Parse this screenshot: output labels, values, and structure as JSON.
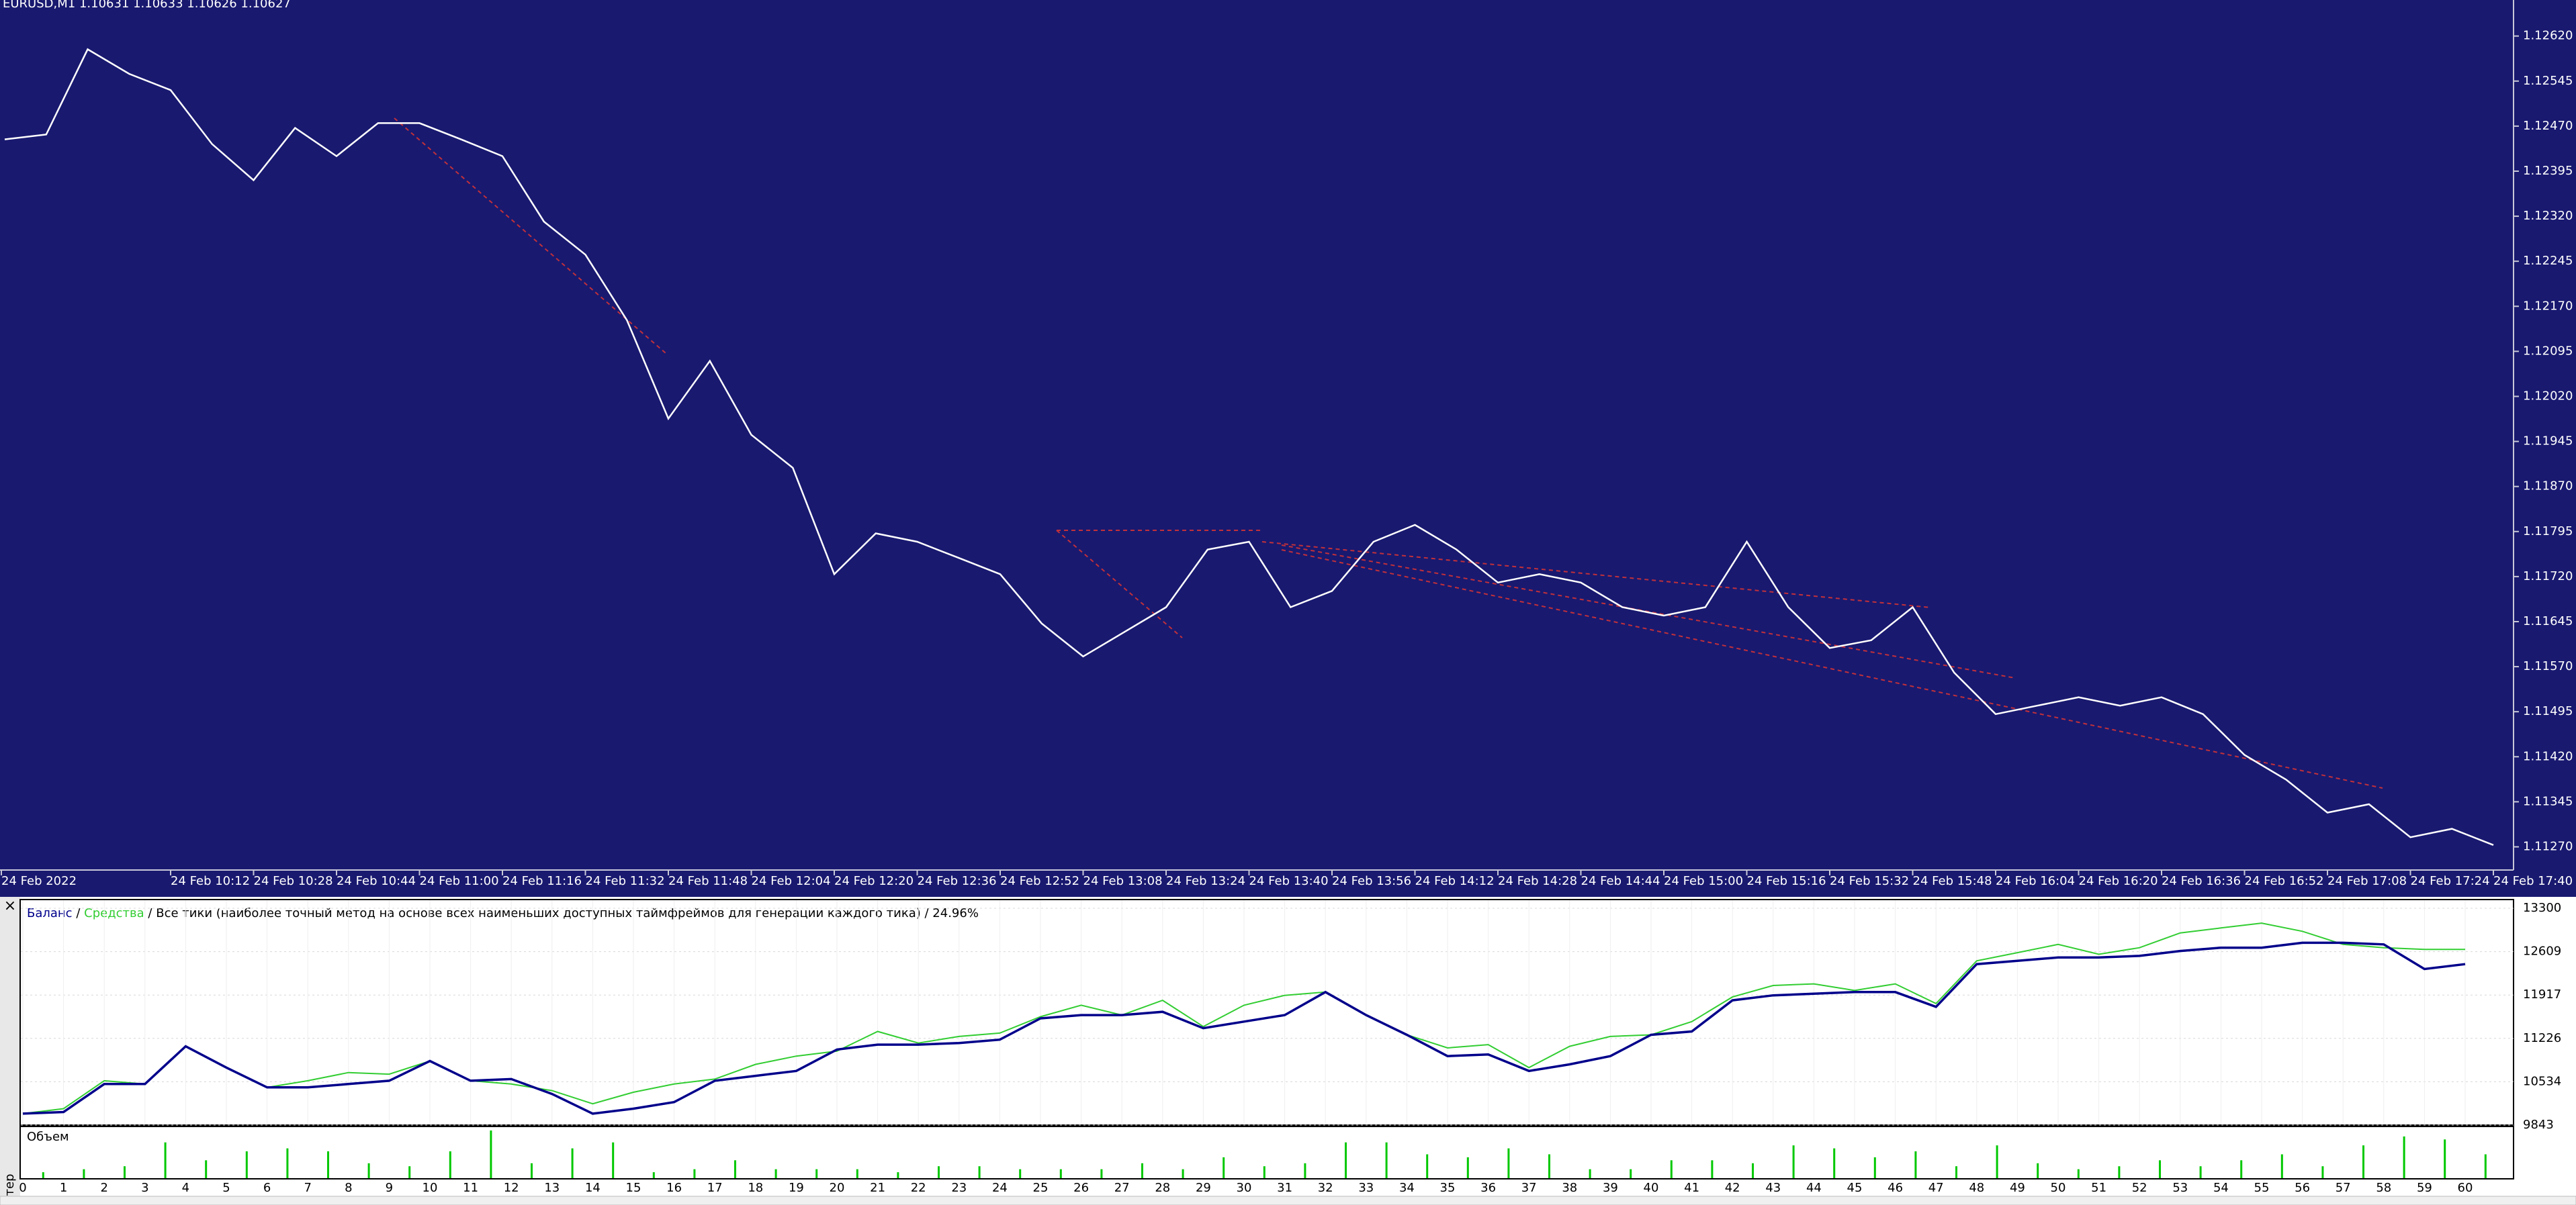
{
  "header": {
    "symbol_line": "EURUSD,M1 1.10631 1.10633 1.10626 1.10627"
  },
  "tab_label": "стер",
  "close_label": "×",
  "chart_data": [
    {
      "type": "line",
      "color": "#ffffff",
      "x": [
        "24 Feb 09:40",
        "24 Feb 09:48",
        "24 Feb 09:56",
        "24 Feb 10:04",
        "24 Feb 10:12",
        "24 Feb 10:20",
        "24 Feb 10:28",
        "24 Feb 10:36",
        "24 Feb 10:44",
        "24 Feb 10:52",
        "24 Feb 11:00",
        "24 Feb 11:08",
        "24 Feb 11:16",
        "24 Feb 11:24",
        "24 Feb 11:32",
        "24 Feb 11:40",
        "24 Feb 11:48",
        "24 Feb 11:56",
        "24 Feb 12:04",
        "24 Feb 12:12",
        "24 Feb 12:20",
        "24 Feb 12:28",
        "24 Feb 12:36",
        "24 Feb 12:44",
        "24 Feb 12:52",
        "24 Feb 13:00",
        "24 Feb 13:08",
        "24 Feb 13:16",
        "24 Feb 13:24",
        "24 Feb 13:32",
        "24 Feb 13:40",
        "24 Feb 13:48",
        "24 Feb 13:56",
        "24 Feb 14:04",
        "24 Feb 14:12",
        "24 Feb 14:20",
        "24 Feb 14:28",
        "24 Feb 14:36",
        "24 Feb 14:44",
        "24 Feb 14:52",
        "24 Feb 15:00",
        "24 Feb 15:08",
        "24 Feb 15:16",
        "24 Feb 15:24",
        "24 Feb 15:32",
        "24 Feb 15:40",
        "24 Feb 15:48",
        "24 Feb 15:56",
        "24 Feb 16:04",
        "24 Feb 16:12",
        "24 Feb 16:20",
        "24 Feb 16:28",
        "24 Feb 16:36",
        "24 Feb 16:44",
        "24 Feb 16:52",
        "24 Feb 17:00",
        "24 Feb 17:08",
        "24 Feb 17:16",
        "24 Feb 17:24",
        "24 Feb 17:32",
        "24 Feb 17:40"
      ],
      "values": [
        1.12448,
        1.12456,
        1.12598,
        1.12557,
        1.1253,
        1.1244,
        1.1238,
        1.12467,
        1.1242,
        1.12475,
        1.12475,
        1.12448,
        1.1242,
        1.12311,
        1.12256,
        1.12147,
        1.11983,
        1.12079,
        1.11956,
        1.11901,
        1.11724,
        1.11792,
        1.11778,
        1.11751,
        1.11724,
        1.11642,
        1.11587,
        1.11628,
        1.11669,
        1.11765,
        1.11778,
        1.11669,
        1.11696,
        1.11778,
        1.11806,
        1.11765,
        1.1171,
        1.11724,
        1.1171,
        1.11669,
        1.11655,
        1.11669,
        1.11778,
        1.11669,
        1.11601,
        1.11614,
        1.11669,
        1.1156,
        1.11491,
        1.11505,
        1.11519,
        1.11505,
        1.11519,
        1.11491,
        1.11423,
        1.11382,
        1.11327,
        1.11341,
        1.11286,
        1.113,
        1.11273
      ],
      "ylim": [
        1.11237,
        1.1268
      ],
      "yticks": [
        {
          "value": 1.1262,
          "label": "1.12620"
        },
        1.12545,
        {
          "value": 1.1247,
          "label": "1.12470"
        },
        1.12395,
        {
          "value": 1.1232,
          "label": "1.12320"
        },
        1.12245,
        {
          "value": 1.1217,
          "label": "1.12170"
        },
        1.12095,
        {
          "value": 1.1202,
          "label": "1.12020"
        },
        1.11945,
        {
          "value": 1.1187,
          "label": "1.11870"
        },
        1.11795,
        {
          "value": 1.1172,
          "label": "1.11720"
        },
        1.11645,
        {
          "value": 1.1157,
          "label": "1.11570"
        },
        1.11495,
        {
          "value": 1.1142,
          "label": "1.11420"
        },
        1.11345,
        {
          "value": 1.1127,
          "label": "1.11270"
        }
      ],
      "xticks": [
        "24 Feb 2022",
        "24 Feb 10:12",
        "24 Feb 10:28",
        "24 Feb 10:44",
        "24 Feb 11:00",
        "24 Feb 11:16",
        "24 Feb 11:32",
        "24 Feb 11:48",
        "24 Feb 12:04",
        "24 Feb 12:20",
        "24 Feb 12:36",
        "24 Feb 12:52",
        "24 Feb 13:08",
        "24 Feb 13:24",
        "24 Feb 13:40",
        "24 Feb 13:56",
        "24 Feb 14:12",
        "24 Feb 14:28",
        "24 Feb 14:44",
        "24 Feb 15:00",
        "24 Feb 15:16",
        "24 Feb 15:32",
        "24 Feb 15:48",
        "24 Feb 16:04",
        "24 Feb 16:20",
        "24 Feb 16:36",
        "24 Feb 16:52",
        "24 Feb 17:08",
        "24 Feb 17:24",
        "24 Feb 17:40"
      ]
    },
    {
      "type": "line",
      "separator": "/",
      "subtitle": "Все тики (наиболее точный метод на основе всех наименьших доступных таймфреймов для генерации каждого тика)",
      "quality": "24.96%",
      "grid": true,
      "ylim": [
        9843,
        13300
      ],
      "yticks": [
        13300,
        12609,
        11917,
        11226,
        10534,
        9843
      ],
      "xticks": [
        0,
        1,
        2,
        3,
        4,
        5,
        6,
        7,
        8,
        9,
        10,
        11,
        12,
        13,
        14,
        15,
        16,
        17,
        18,
        19,
        20,
        21,
        22,
        23,
        24,
        25,
        26,
        27,
        28,
        29,
        30,
        31,
        32,
        33,
        34,
        35,
        36,
        37,
        38,
        39,
        40,
        41,
        42,
        43,
        44,
        45,
        46,
        47,
        48,
        49,
        50,
        51,
        52,
        53,
        54,
        55,
        56,
        57,
        58,
        59,
        60
      ],
      "series": [
        {
          "name": "Баланс",
          "color": "#00008b",
          "values": [
            10026,
            10052,
            10498,
            10498,
            11100,
            10760,
            10445,
            10445,
            10498,
            10550,
            10865,
            10550,
            10577,
            10340,
            10026,
            10105,
            10210,
            10550,
            10629,
            10707,
            11048,
            11126,
            11126,
            11152,
            11205,
            11545,
            11597,
            11597,
            11650,
            11388,
            11493,
            11597,
            11964,
            11597,
            11283,
            10943,
            10969,
            10707,
            10812,
            10943,
            11283,
            11336,
            11833,
            11912,
            11938,
            11964,
            11964,
            11729,
            12410,
            12462,
            12515,
            12515,
            12541,
            12619,
            12672,
            12672,
            12750,
            12750,
            12724,
            12331,
            12410
          ]
        },
        {
          "name": "Средства",
          "color": "#32cd32",
          "values": [
            10026,
            10105,
            10550,
            10498,
            11100,
            10760,
            10445,
            10550,
            10681,
            10655,
            10865,
            10550,
            10498,
            10393,
            10183,
            10367,
            10498,
            10577,
            10812,
            10943,
            11022,
            11336,
            11152,
            11257,
            11310,
            11571,
            11755,
            11597,
            11833,
            11414,
            11755,
            11912,
            11964,
            11597,
            11283,
            11074,
            11126,
            10760,
            11100,
            11257,
            11283,
            11493,
            11886,
            12069,
            12095,
            11990,
            12095,
            11781,
            12462,
            12593,
            12724,
            12567,
            12672,
            12907,
            12986,
            13064,
            12933,
            12724,
            12672,
            12645,
            12645
          ]
        }
      ]
    },
    {
      "type": "bar",
      "title": "Объем",
      "color": "#00c800",
      "ylim": [
        0,
        16
      ],
      "values": [
        2,
        3,
        4,
        12,
        6,
        9,
        10,
        9,
        5,
        4,
        9,
        16,
        5,
        10,
        12,
        2,
        3,
        6,
        3,
        3,
        3,
        2,
        4,
        4,
        3,
        3,
        3,
        5,
        3,
        7,
        4,
        5,
        12,
        12,
        8,
        7,
        10,
        8,
        3,
        3,
        6,
        6,
        5,
        11,
        10,
        7,
        9,
        4,
        11,
        5,
        3,
        4,
        6,
        4,
        6,
        8,
        4,
        11,
        14,
        13,
        8
      ]
    }
  ]
}
